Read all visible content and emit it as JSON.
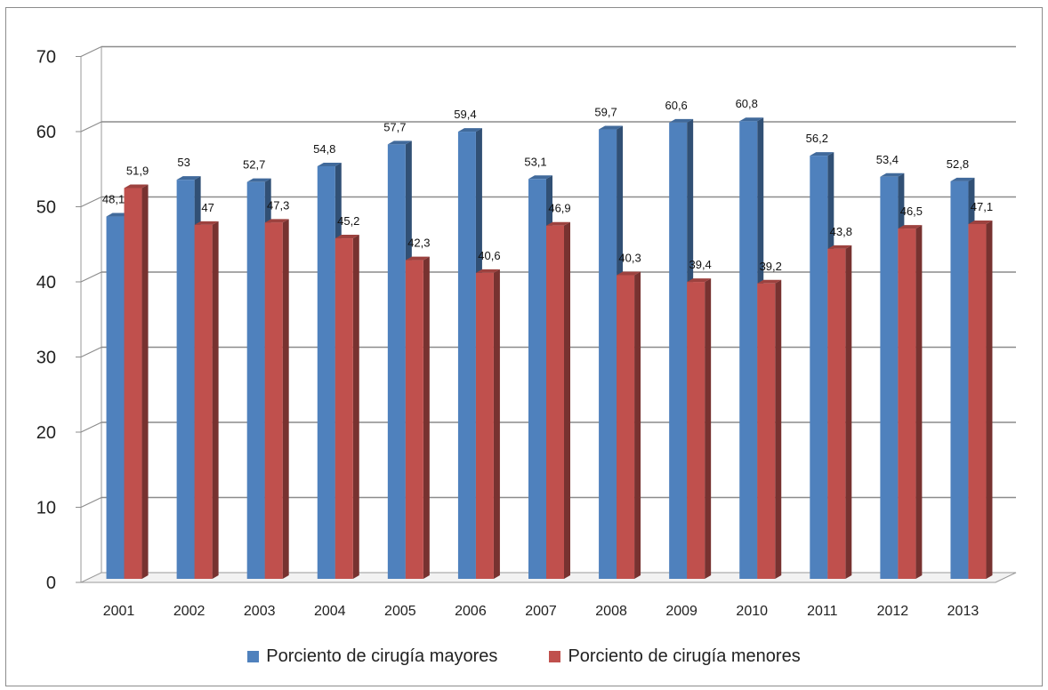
{
  "chart_data": {
    "type": "bar",
    "title": "",
    "xlabel": "",
    "ylabel": "",
    "ylim": [
      0,
      70
    ],
    "yticks": [
      "0",
      "10",
      "20",
      "30",
      "40",
      "50",
      "60",
      "70"
    ],
    "grid": true,
    "legend_position": "bottom",
    "categories": [
      "2001",
      "2002",
      "2003",
      "2004",
      "2005",
      "2006",
      "2007",
      "2008",
      "2009",
      "2010",
      "2011",
      "2012",
      "2013"
    ],
    "series": [
      {
        "name": "Porciento de cirugía mayores",
        "color": "#4f81bd",
        "values": [
          48.1,
          53,
          52.7,
          54.8,
          57.7,
          59.4,
          53.1,
          59.7,
          60.6,
          60.8,
          56.2,
          53.4,
          52.8
        ],
        "labels": [
          "48,1",
          "53",
          "52,7",
          "54,8",
          "57,7",
          "59,4",
          "53,1",
          "59,7",
          "60,6",
          "60,8",
          "56,2",
          "53,4",
          "52,8"
        ]
      },
      {
        "name": "Porciento de cirugía menores",
        "color": "#c0504d",
        "values": [
          51.9,
          47,
          47.3,
          45.2,
          42.3,
          40.6,
          46.9,
          40.3,
          39.4,
          39.2,
          43.8,
          46.5,
          47.1
        ],
        "labels": [
          "51,9",
          "47",
          "47,3",
          "45,2",
          "42,3",
          "40,6",
          "46,9",
          "40,3",
          "39,4",
          "39,2",
          "43,8",
          "46,5",
          "47,1"
        ]
      }
    ]
  }
}
